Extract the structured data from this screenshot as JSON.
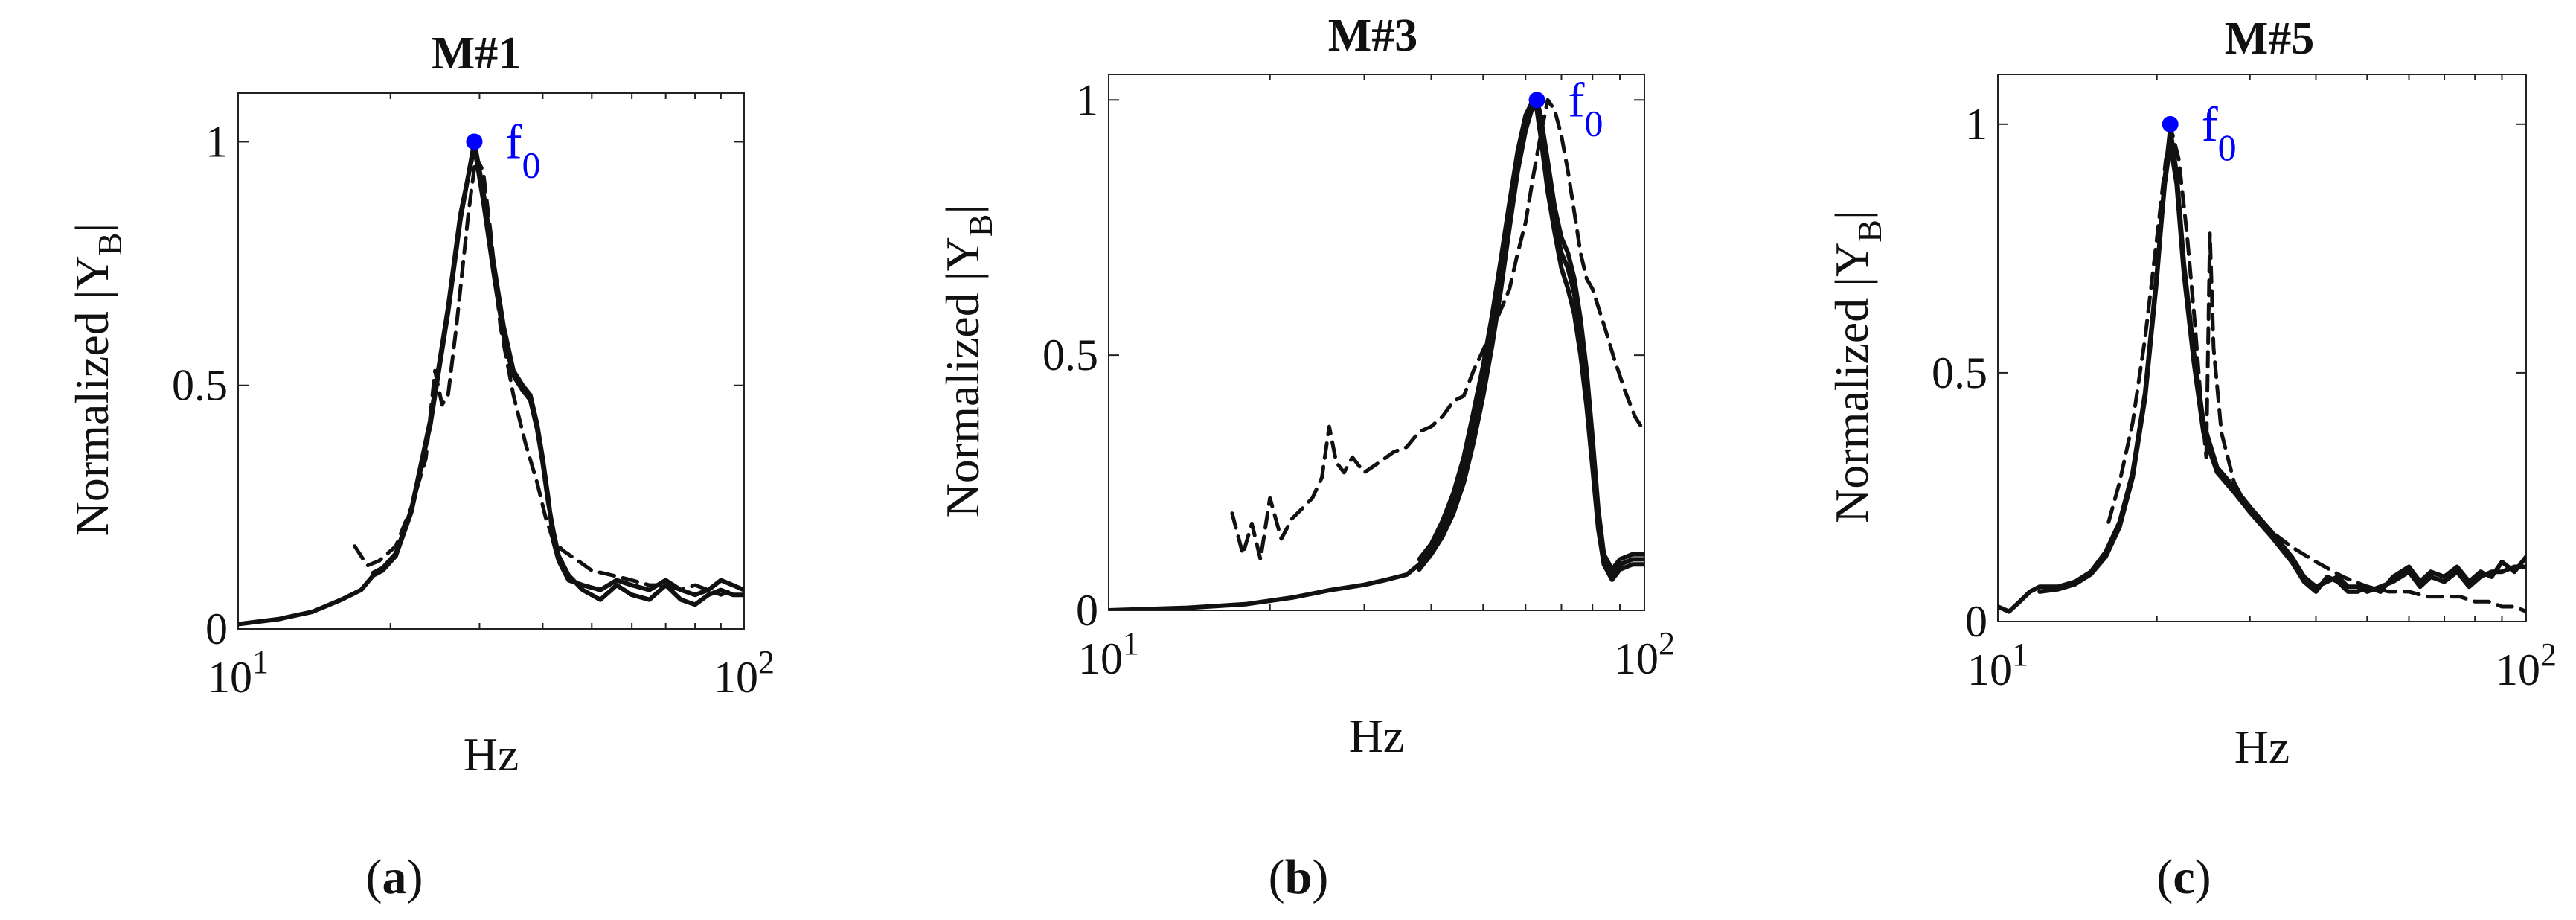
{
  "chart_data": [
    {
      "type": "line",
      "title": "M#1",
      "caption_letter": "a",
      "xlabel": "Hz",
      "ylabel_prefix": "Normalized |Y",
      "ylabel_sub": "B",
      "ylabel_suffix": "|",
      "xscale": "log",
      "xlim": [
        10,
        100
      ],
      "ylim": [
        0,
        1.1
      ],
      "x_ticks": [
        {
          "base": "10",
          "exp": "1",
          "value": 10
        },
        {
          "base": "10",
          "exp": "2",
          "value": 100
        }
      ],
      "y_ticks": [
        {
          "label": "0",
          "value": 0
        },
        {
          "label": "0.5",
          "value": 0.5
        },
        {
          "label": "1",
          "value": 1
        }
      ],
      "marker": {
        "label": "f",
        "sub": "0",
        "x": 29.3,
        "y": 1.0,
        "color": "#0000ff"
      },
      "series": [
        {
          "name": "solid-1",
          "style": "solid",
          "x": [
            10,
            12,
            14,
            16,
            17.5,
            18.5,
            19.3,
            20.5,
            22,
            24,
            26,
            27.5,
            29.3,
            30.5,
            32,
            33.5,
            35,
            36.5,
            37.8,
            39,
            40,
            41,
            42,
            43,
            45,
            48,
            52,
            56,
            60,
            65,
            70,
            75,
            80,
            85,
            90,
            95,
            100
          ],
          "y": [
            0.01,
            0.02,
            0.035,
            0.06,
            0.08,
            0.11,
            0.12,
            0.15,
            0.24,
            0.42,
            0.65,
            0.84,
            1.0,
            0.9,
            0.75,
            0.62,
            0.53,
            0.5,
            0.48,
            0.42,
            0.35,
            0.27,
            0.18,
            0.14,
            0.1,
            0.09,
            0.08,
            0.1,
            0.09,
            0.08,
            0.1,
            0.08,
            0.07,
            0.08,
            0.1,
            0.09,
            0.08
          ]
        },
        {
          "name": "solid-2",
          "style": "solid",
          "x": [
            18.5,
            19.3,
            20.5,
            22,
            24,
            26,
            27.5,
            29.3,
            30.5,
            32,
            33.5,
            35,
            36.5,
            37.8,
            39,
            40,
            41,
            42,
            43,
            45,
            48,
            52,
            56,
            60,
            65,
            70,
            75,
            80,
            85,
            90,
            95,
            100
          ],
          "y": [
            0.115,
            0.125,
            0.155,
            0.245,
            0.43,
            0.66,
            0.85,
            0.99,
            0.88,
            0.73,
            0.6,
            0.52,
            0.49,
            0.47,
            0.41,
            0.34,
            0.26,
            0.2,
            0.15,
            0.11,
            0.08,
            0.06,
            0.09,
            0.07,
            0.06,
            0.09,
            0.06,
            0.05,
            0.07,
            0.08,
            0.07,
            0.07
          ]
        },
        {
          "name": "dashed",
          "style": "dashed",
          "x": [
            17,
            18,
            19,
            20.5,
            22,
            23.5,
            24.5,
            25.3,
            26,
            27,
            28.5,
            29.5,
            30.5,
            31.5,
            33,
            35,
            37,
            39,
            40.5,
            42,
            44,
            47,
            50,
            55,
            60,
            65,
            70,
            75,
            80,
            85,
            90,
            95
          ],
          "y": [
            0.17,
            0.13,
            0.14,
            0.17,
            0.25,
            0.35,
            0.53,
            0.46,
            0.48,
            0.62,
            0.85,
            0.97,
            0.94,
            0.82,
            0.62,
            0.48,
            0.38,
            0.3,
            0.23,
            0.18,
            0.16,
            0.14,
            0.12,
            0.11,
            0.1,
            0.09,
            0.09,
            0.08,
            0.09,
            0.08,
            0.07,
            0.08
          ]
        }
      ]
    },
    {
      "type": "line",
      "title": "M#3",
      "caption_letter": "b",
      "xlabel": "Hz",
      "ylabel_prefix": "Normalized |Y",
      "ylabel_sub": "B",
      "ylabel_suffix": "|",
      "xscale": "log",
      "xlim": [
        10,
        100
      ],
      "ylim": [
        0,
        1.05
      ],
      "x_ticks": [
        {
          "base": "10",
          "exp": "1",
          "value": 10
        },
        {
          "base": "10",
          "exp": "2",
          "value": 100
        }
      ],
      "y_ticks": [
        {
          "label": "0",
          "value": 0
        },
        {
          "label": "0.5",
          "value": 0.5
        },
        {
          "label": "1",
          "value": 1
        }
      ],
      "marker": {
        "label": "f",
        "sub": "0",
        "x": 63,
        "y": 1.0,
        "color": "#0000ff"
      },
      "series": [
        {
          "name": "solid-1",
          "style": "solid",
          "x": [
            10,
            14,
            18,
            22,
            26,
            30,
            33,
            36,
            38,
            40,
            42,
            44,
            46,
            48,
            50,
            52,
            54,
            56,
            58,
            60,
            62,
            63,
            64,
            66,
            68,
            70,
            72,
            74,
            76,
            78,
            80,
            82,
            84,
            87,
            90,
            95,
            100
          ],
          "y": [
            0.0,
            0.005,
            0.012,
            0.025,
            0.04,
            0.05,
            0.06,
            0.07,
            0.09,
            0.12,
            0.16,
            0.21,
            0.28,
            0.36,
            0.45,
            0.55,
            0.66,
            0.78,
            0.88,
            0.96,
            1.0,
            0.99,
            0.95,
            0.85,
            0.76,
            0.7,
            0.67,
            0.62,
            0.54,
            0.44,
            0.32,
            0.18,
            0.1,
            0.07,
            0.09,
            0.1,
            0.1
          ]
        },
        {
          "name": "solid-2",
          "style": "solid",
          "x": [
            38,
            40,
            42,
            44,
            46,
            48,
            50,
            52,
            54,
            56,
            58,
            60,
            62,
            63,
            64,
            66,
            68,
            70,
            72,
            74,
            76,
            78,
            80,
            82,
            84,
            87,
            90,
            95,
            100
          ],
          "y": [
            0.08,
            0.11,
            0.145,
            0.19,
            0.25,
            0.33,
            0.42,
            0.52,
            0.63,
            0.75,
            0.86,
            0.94,
            0.99,
            0.98,
            0.93,
            0.82,
            0.74,
            0.67,
            0.63,
            0.58,
            0.5,
            0.4,
            0.28,
            0.16,
            0.09,
            0.06,
            0.08,
            0.09,
            0.09
          ]
        },
        {
          "name": "solid-3",
          "style": "solid",
          "x": [
            38,
            40,
            42,
            44,
            46,
            48,
            50,
            52,
            54,
            56,
            58,
            60,
            62,
            63,
            64,
            66,
            68,
            70,
            72,
            74,
            76,
            78,
            80,
            82,
            84,
            87,
            90,
            95,
            100
          ],
          "y": [
            0.1,
            0.13,
            0.175,
            0.23,
            0.3,
            0.39,
            0.48,
            0.58,
            0.69,
            0.8,
            0.9,
            0.97,
            1.0,
            1.0,
            0.97,
            0.88,
            0.79,
            0.73,
            0.7,
            0.65,
            0.57,
            0.47,
            0.34,
            0.2,
            0.11,
            0.08,
            0.1,
            0.11,
            0.11
          ]
        },
        {
          "name": "dashed",
          "style": "dashed",
          "x": [
            17,
            17.8,
            18.5,
            19.2,
            20,
            21,
            22,
            23,
            24,
            25,
            25.8,
            26.6,
            27.5,
            28.5,
            30,
            32,
            34,
            36,
            38,
            40,
            42,
            44,
            46,
            48,
            50,
            52,
            54,
            56,
            58,
            60,
            62,
            64,
            66,
            68,
            70,
            72,
            74,
            76,
            78,
            80,
            84,
            88,
            92,
            96,
            100
          ],
          "y": [
            0.19,
            0.11,
            0.17,
            0.1,
            0.22,
            0.14,
            0.18,
            0.2,
            0.22,
            0.26,
            0.36,
            0.29,
            0.27,
            0.3,
            0.27,
            0.29,
            0.31,
            0.32,
            0.35,
            0.36,
            0.38,
            0.41,
            0.42,
            0.47,
            0.51,
            0.55,
            0.59,
            0.63,
            0.7,
            0.76,
            0.85,
            0.93,
            1.0,
            0.98,
            0.93,
            0.86,
            0.78,
            0.7,
            0.65,
            0.63,
            0.56,
            0.49,
            0.43,
            0.38,
            0.35
          ]
        }
      ]
    },
    {
      "type": "line",
      "title": "M#5",
      "caption_letter": "c",
      "xlabel": "Hz",
      "ylabel_prefix": "Normalized |Y",
      "ylabel_sub": "B",
      "ylabel_suffix": "|",
      "xscale": "log",
      "xlim": [
        10,
        100
      ],
      "ylim": [
        0,
        1.1
      ],
      "x_ticks": [
        {
          "base": "10",
          "exp": "1",
          "value": 10
        },
        {
          "base": "10",
          "exp": "2",
          "value": 100
        }
      ],
      "y_ticks": [
        {
          "label": "0",
          "value": 0
        },
        {
          "label": "0.5",
          "value": 0.5
        },
        {
          "label": "1",
          "value": 1
        }
      ],
      "marker": {
        "label": "f",
        "sub": "0",
        "x": 21.2,
        "y": 1.0,
        "color": "#0000ff"
      },
      "series": [
        {
          "name": "solid-1",
          "style": "solid",
          "x": [
            10,
            10.5,
            11,
            11.5,
            12,
            13,
            14,
            15,
            16,
            17,
            18,
            19,
            20,
            20.7,
            21.2,
            21.8,
            22.5,
            23.5,
            24.5,
            26,
            28,
            30,
            33,
            36,
            38,
            40,
            42,
            44,
            46,
            48,
            50,
            53,
            56,
            60,
            63,
            66,
            70,
            74,
            78,
            82,
            86,
            90,
            95,
            100
          ],
          "y": [
            0.03,
            0.02,
            0.04,
            0.06,
            0.07,
            0.07,
            0.08,
            0.1,
            0.14,
            0.2,
            0.3,
            0.46,
            0.7,
            0.88,
            0.96,
            0.88,
            0.7,
            0.52,
            0.38,
            0.3,
            0.26,
            0.22,
            0.17,
            0.12,
            0.08,
            0.06,
            0.09,
            0.08,
            0.06,
            0.06,
            0.07,
            0.06,
            0.09,
            0.11,
            0.08,
            0.1,
            0.09,
            0.11,
            0.08,
            0.1,
            0.09,
            0.12,
            0.1,
            0.13
          ]
        },
        {
          "name": "solid-2",
          "style": "solid",
          "x": [
            12,
            13,
            14,
            15,
            16,
            17,
            18,
            19,
            20,
            20.7,
            21.2,
            21.8,
            22.5,
            23.5,
            24.5,
            26,
            28,
            30,
            33,
            36,
            38,
            40,
            42,
            44,
            46,
            48,
            50,
            53,
            56,
            60,
            63,
            66,
            70,
            74,
            78,
            82,
            86,
            90,
            95,
            100
          ],
          "y": [
            0.06,
            0.065,
            0.075,
            0.095,
            0.13,
            0.19,
            0.29,
            0.45,
            0.69,
            0.89,
            0.99,
            0.9,
            0.72,
            0.54,
            0.4,
            0.31,
            0.27,
            0.23,
            0.18,
            0.13,
            0.09,
            0.07,
            0.08,
            0.09,
            0.07,
            0.07,
            0.06,
            0.07,
            0.08,
            0.1,
            0.07,
            0.09,
            0.08,
            0.1,
            0.07,
            0.09,
            0.1,
            0.1,
            0.11,
            0.11
          ]
        },
        {
          "name": "dashed",
          "style": "dashed",
          "x": [
            16.2,
            17,
            18,
            19,
            20,
            20.8,
            21.4,
            22,
            22.8,
            23.6,
            24.2,
            24.8,
            25.2,
            25.6,
            26.5,
            28,
            30,
            33,
            36,
            40,
            45,
            50,
            55,
            60,
            65,
            70,
            75,
            80,
            85,
            90,
            95,
            100
          ],
          "y": [
            0.2,
            0.28,
            0.4,
            0.57,
            0.77,
            0.93,
            0.98,
            0.93,
            0.78,
            0.6,
            0.45,
            0.33,
            0.78,
            0.55,
            0.38,
            0.28,
            0.22,
            0.18,
            0.15,
            0.12,
            0.09,
            0.07,
            0.06,
            0.06,
            0.05,
            0.05,
            0.05,
            0.04,
            0.04,
            0.03,
            0.03,
            0.02
          ]
        }
      ]
    }
  ]
}
